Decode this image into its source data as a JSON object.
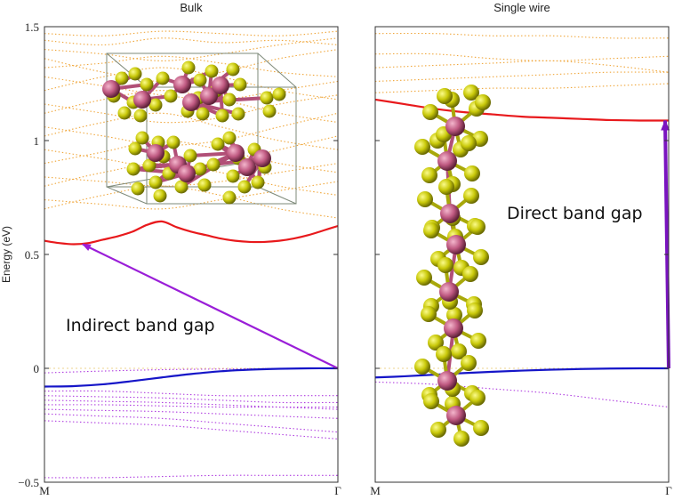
{
  "chart_data": [
    {
      "type": "line",
      "title": "Bulk",
      "ylabel": "Energy (eV)",
      "ylim": [
        -0.5,
        1.5
      ],
      "yticks": [
        "1.5",
        "1",
        "0.5",
        "0",
        "−0.5"
      ],
      "ytick_values": [
        1.5,
        1.0,
        0.5,
        0.0,
        -0.5
      ],
      "xticks": [
        "M",
        "Γ"
      ],
      "xlim": [
        0,
        1
      ],
      "series": [
        {
          "name": "conduction band minimum",
          "color": "#e8191c",
          "x": [
            0,
            0.05,
            0.1,
            0.15,
            0.2,
            0.25,
            0.3,
            0.35,
            0.4,
            0.45,
            0.5,
            0.55,
            0.6,
            0.65,
            0.7,
            0.75,
            0.8,
            0.85,
            0.9,
            0.95,
            1.0
          ],
          "y": [
            0.56,
            0.55,
            0.545,
            0.55,
            0.565,
            0.58,
            0.6,
            0.63,
            0.645,
            0.62,
            0.6,
            0.585,
            0.57,
            0.56,
            0.555,
            0.555,
            0.56,
            0.57,
            0.585,
            0.605,
            0.625
          ]
        },
        {
          "name": "valence band maximum",
          "color": "#1515c8",
          "x": [
            0,
            0.1,
            0.2,
            0.3,
            0.4,
            0.5,
            0.6,
            0.7,
            0.8,
            0.9,
            1.0
          ],
          "y": [
            -0.08,
            -0.078,
            -0.07,
            -0.056,
            -0.04,
            -0.025,
            -0.013,
            -0.006,
            -0.002,
            0.0,
            0.0
          ]
        }
      ],
      "dotted_conduction_bands": {
        "color": "#f0a73c",
        "lines": [
          [
            1.47,
            1.46,
            1.48,
            1.47,
            1.46,
            1.48
          ],
          [
            1.44,
            1.42,
            1.45,
            1.43,
            1.44,
            1.42
          ],
          [
            1.4,
            1.38,
            1.35,
            1.38,
            1.42,
            1.45
          ],
          [
            1.36,
            1.3,
            1.26,
            1.3,
            1.36,
            1.4
          ],
          [
            1.32,
            1.34,
            1.37,
            1.34,
            1.3,
            1.28
          ],
          [
            1.28,
            1.24,
            1.2,
            1.18,
            1.22,
            1.26
          ],
          [
            1.22,
            1.28,
            1.32,
            1.28,
            1.22,
            1.18
          ],
          [
            1.16,
            1.12,
            1.08,
            1.1,
            1.16,
            1.2
          ],
          [
            1.12,
            1.18,
            1.22,
            1.18,
            1.12,
            1.08
          ],
          [
            1.06,
            1.02,
            0.98,
            1.0,
            1.06,
            1.12
          ],
          [
            1.02,
            1.08,
            1.12,
            1.06,
            1.0,
            0.96
          ],
          [
            0.96,
            0.92,
            0.88,
            0.9,
            0.96,
            1.02
          ],
          [
            0.9,
            0.95,
            1.0,
            0.96,
            0.9,
            0.86
          ],
          [
            0.84,
            0.82,
            0.8,
            0.82,
            0.86,
            0.9
          ],
          [
            0.8,
            0.86,
            0.9,
            0.86,
            0.8,
            0.76
          ],
          [
            0.74,
            0.72,
            0.7,
            0.74,
            0.78,
            0.82
          ],
          [
            0.7,
            0.76,
            0.8,
            0.76,
            0.7,
            0.66
          ]
        ]
      },
      "dotted_valence_bands": {
        "color": "#b03fe0",
        "lines": [
          [
            -0.02,
            -0.012,
            -0.006,
            -0.003,
            -0.001,
            0.0
          ],
          [
            -0.1,
            -0.1,
            -0.11,
            -0.12,
            -0.12,
            -0.12
          ],
          [
            -0.12,
            -0.125,
            -0.13,
            -0.14,
            -0.15,
            -0.15
          ],
          [
            -0.14,
            -0.145,
            -0.15,
            -0.16,
            -0.17,
            -0.18
          ],
          [
            -0.16,
            -0.16,
            -0.165,
            -0.17,
            -0.17,
            -0.17
          ],
          [
            -0.18,
            -0.185,
            -0.19,
            -0.2,
            -0.21,
            -0.22
          ],
          [
            -0.2,
            -0.21,
            -0.22,
            -0.24,
            -0.26,
            -0.28
          ],
          [
            -0.23,
            -0.24,
            -0.25,
            -0.27,
            -0.29,
            -0.31
          ],
          [
            -0.48,
            -0.48,
            -0.475,
            -0.47,
            -0.47,
            -0.47
          ]
        ]
      },
      "annotation": {
        "text": "Indirect band gap",
        "from": [
          1.0,
          0.0
        ],
        "to": [
          0.13,
          0.545
        ],
        "color": "#9a1ed8"
      }
    },
    {
      "type": "line",
      "title": "Single wire",
      "ylim": [
        -0.5,
        1.5
      ],
      "xticks": [
        "M",
        "Γ"
      ],
      "xlim": [
        0,
        1
      ],
      "series": [
        {
          "name": "conduction band minimum",
          "color": "#e8191c",
          "x": [
            0,
            0.1,
            0.2,
            0.3,
            0.4,
            0.5,
            0.6,
            0.7,
            0.8,
            0.9,
            1.0
          ],
          "y": [
            1.18,
            1.16,
            1.14,
            1.125,
            1.115,
            1.105,
            1.1,
            1.095,
            1.09,
            1.088,
            1.088
          ]
        },
        {
          "name": "valence band maximum",
          "color": "#1515c8",
          "x": [
            0,
            0.1,
            0.2,
            0.3,
            0.4,
            0.5,
            0.6,
            0.7,
            0.8,
            0.9,
            1.0
          ],
          "y": [
            -0.04,
            -0.035,
            -0.028,
            -0.021,
            -0.015,
            -0.01,
            -0.006,
            -0.003,
            -0.001,
            0.0,
            0.0
          ]
        }
      ],
      "dotted_conduction_bands": {
        "color": "#f0a73c",
        "lines": [
          [
            1.47,
            1.47,
            1.46,
            1.46,
            1.45,
            1.45
          ],
          [
            1.38,
            1.38,
            1.36,
            1.35,
            1.36,
            1.37
          ],
          [
            1.32,
            1.33,
            1.34,
            1.35,
            1.33,
            1.3
          ],
          [
            1.26,
            1.27,
            1.28,
            1.29,
            1.3,
            1.3
          ],
          [
            1.21,
            1.22,
            1.23,
            1.23,
            1.24,
            1.25
          ]
        ]
      },
      "dotted_valence_bands": {
        "color": "#b03fe0",
        "lines": [
          [
            -0.06,
            -0.07,
            -0.09,
            -0.11,
            -0.14,
            -0.17
          ]
        ]
      },
      "annotation": {
        "text": "Direct band gap",
        "from": [
          1.0,
          0.0
        ],
        "to": [
          1.0,
          1.088
        ],
        "color": "#7a14c0"
      }
    }
  ],
  "colors": {
    "sulfur_atom": "#d6d60c",
    "metal_atom": "#c8628a",
    "frame": "#333333"
  }
}
